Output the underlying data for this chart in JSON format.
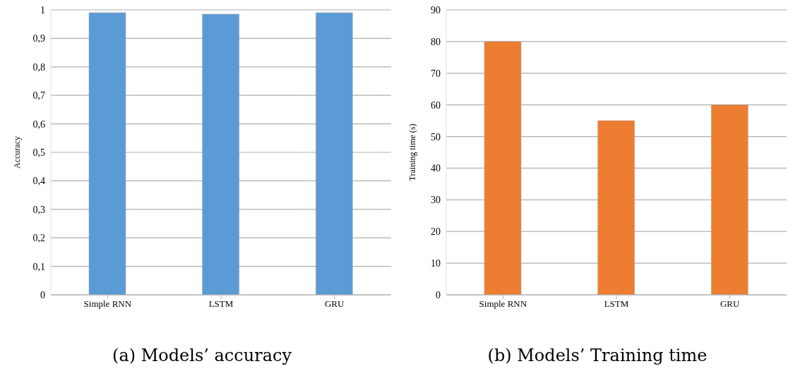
{
  "chart_data": [
    {
      "type": "bar",
      "title": "(a) Models’ accuracy",
      "ylabel": "Accuracy",
      "categories": [
        "Simple RNN",
        "LSTM",
        "GRU"
      ],
      "values": [
        0.99,
        0.985,
        0.99
      ],
      "color": "#5b9bd5",
      "ylim": [
        0,
        1
      ],
      "yticks": [
        0,
        {
          "value": 0.1,
          "label": "0,1"
        },
        {
          "value": 0.2,
          "label": "0,2"
        },
        {
          "value": 0.3,
          "label": "0,3"
        },
        {
          "value": 0.4,
          "label": "0,4"
        },
        {
          "value": 0.5,
          "label": "0,5"
        },
        {
          "value": 0.6,
          "label": "0,6"
        },
        {
          "value": 0.7,
          "label": "0,7"
        },
        {
          "value": 0.8,
          "label": "0,8"
        },
        {
          "value": 0.9,
          "label": "0,9"
        },
        1
      ],
      "grid": "y"
    },
    {
      "type": "bar",
      "title": "(b) Models’ Training time",
      "ylabel": "Training time (s)",
      "categories": [
        "Simple RNN",
        "LSTM",
        "GRU"
      ],
      "values": [
        80,
        55,
        60
      ],
      "color": "#ed7d31",
      "ylim": [
        0,
        90
      ],
      "yticks": [
        0,
        10,
        20,
        30,
        40,
        50,
        60,
        70,
        80,
        90
      ],
      "grid": "y"
    }
  ]
}
